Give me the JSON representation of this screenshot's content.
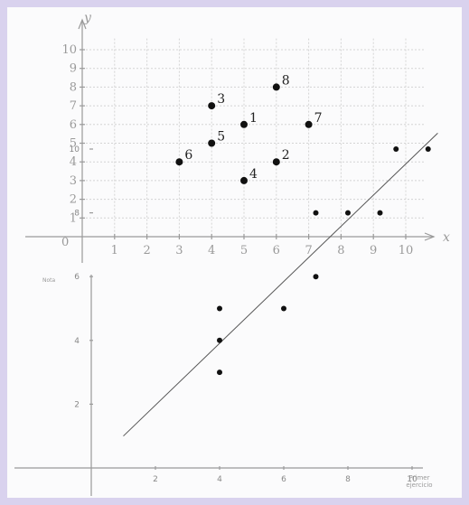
{
  "chart_data": [
    {
      "type": "scatter",
      "xlabel": "x",
      "ylabel": "y",
      "xlim": [
        0,
        10
      ],
      "ylim": [
        0,
        10
      ],
      "grid": true,
      "origin_label": "0",
      "x_ticks": [
        1,
        2,
        3,
        4,
        5,
        6,
        7,
        8,
        9,
        10
      ],
      "y_ticks": [
        1,
        2,
        3,
        4,
        5,
        6,
        7,
        8,
        9,
        10
      ],
      "points": [
        {
          "label": "1",
          "x": 5,
          "y": 6
        },
        {
          "label": "2",
          "x": 6,
          "y": 4
        },
        {
          "label": "3",
          "x": 4,
          "y": 7
        },
        {
          "label": "4",
          "x": 5,
          "y": 3
        },
        {
          "label": "5",
          "x": 4,
          "y": 5
        },
        {
          "label": "6",
          "x": 3,
          "y": 4
        },
        {
          "label": "7",
          "x": 7,
          "y": 6
        },
        {
          "label": "8",
          "x": 6,
          "y": 8
        }
      ]
    },
    {
      "type": "scatter",
      "ylabel": "Nota",
      "xlabel": "Primer ejercicio",
      "xlim": [
        0,
        11
      ],
      "ylim": [
        0,
        11
      ],
      "grid": false,
      "x_ticks": [
        2,
        4,
        6,
        8,
        10
      ],
      "y_ticks": [
        2,
        4,
        6,
        8,
        10
      ],
      "points": [
        {
          "x": 4,
          "y": 3
        },
        {
          "x": 4,
          "y": 4
        },
        {
          "x": 4,
          "y": 5
        },
        {
          "x": 6,
          "y": 5
        },
        {
          "x": 7,
          "y": 6
        },
        {
          "x": 7,
          "y": 8
        },
        {
          "x": 8,
          "y": 8
        },
        {
          "x": 9,
          "y": 8
        },
        {
          "x": 9.5,
          "y": 10
        },
        {
          "x": 10.5,
          "y": 10
        }
      ],
      "regression_line": {
        "x": [
          1,
          10.8
        ],
        "y": [
          1,
          10.5
        ]
      }
    }
  ]
}
